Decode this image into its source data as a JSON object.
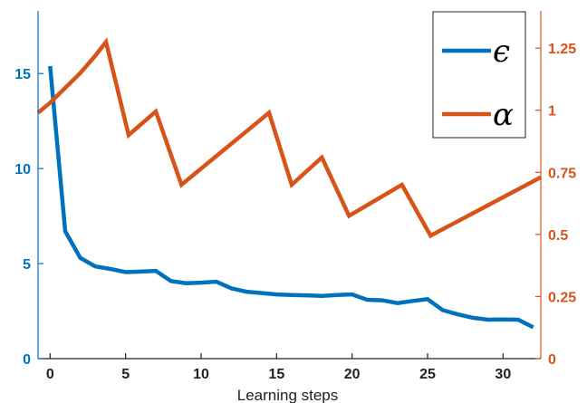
{
  "chart_data": {
    "type": "line",
    "xlabel": "Learning steps",
    "xlim": [
      -0.8,
      32.5
    ],
    "x_ticks": [
      0,
      5,
      10,
      15,
      20,
      25,
      30
    ],
    "left_axis": {
      "ylim": [
        0,
        18.3
      ],
      "ticks": [
        0,
        5,
        10,
        15
      ],
      "color": "#0072BD"
    },
    "right_axis": {
      "ylim": [
        0,
        1.4
      ],
      "ticks": [
        0,
        0.25,
        0.5,
        0.75,
        1,
        1.25
      ],
      "tick_labels": [
        "0",
        "0.25",
        "0.5",
        "0.75",
        "1",
        "1.25"
      ],
      "color": "#D95319"
    },
    "legend": {
      "placement": "top-right",
      "entries": [
        "ϵ",
        "α"
      ]
    },
    "series": [
      {
        "name": "ϵ",
        "axis": "left",
        "color": "#0072BD",
        "x": [
          0,
          1,
          2,
          3,
          4,
          5,
          6,
          7,
          8,
          9,
          10,
          11,
          12,
          13,
          14,
          15,
          16,
          17,
          18,
          19,
          20,
          21,
          22,
          23,
          24,
          25,
          26,
          27,
          28,
          29,
          30,
          31,
          32
        ],
        "values": [
          15.4,
          6.7,
          5.3,
          4.85,
          4.72,
          4.55,
          4.58,
          4.62,
          4.08,
          3.97,
          4.0,
          4.05,
          3.7,
          3.52,
          3.45,
          3.38,
          3.35,
          3.33,
          3.3,
          3.35,
          3.38,
          3.1,
          3.07,
          2.92,
          3.03,
          3.13,
          2.55,
          2.33,
          2.15,
          2.05,
          2.06,
          2.05,
          1.65
        ]
      },
      {
        "name": "α",
        "axis": "right",
        "color": "#D95319",
        "x": [
          -0.8,
          0,
          1,
          2,
          3,
          3.7,
          5.2,
          7,
          8.7,
          14.5,
          16,
          18,
          19.8,
          23.3,
          25.2,
          32.5
        ],
        "values": [
          0.99,
          1.03,
          1.09,
          1.15,
          1.22,
          1.275,
          0.9,
          0.995,
          0.7,
          0.99,
          0.7,
          0.81,
          0.575,
          0.7,
          0.495,
          0.73
        ]
      }
    ]
  }
}
